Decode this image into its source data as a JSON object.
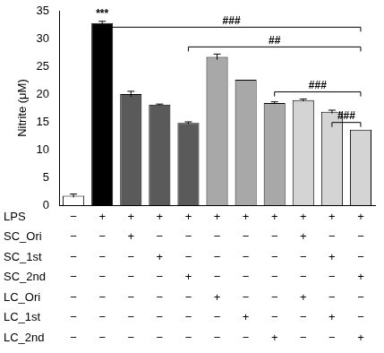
{
  "chart_data": {
    "type": "bar",
    "y_label": "Nitrite (μM)",
    "categories": [
      null,
      null,
      null,
      null,
      null,
      null,
      null,
      null,
      null,
      null,
      null
    ],
    "values": [
      1.7,
      32.8,
      20.0,
      18.1,
      14.8,
      26.7,
      22.6,
      18.4,
      18.9,
      16.8,
      13.6
    ],
    "errors": [
      0.3,
      0.3,
      0.5,
      0.1,
      0.2,
      0.5,
      0.0,
      0.2,
      0.2,
      0.3,
      0.0
    ],
    "colors": [
      "#ffffff",
      "#000000",
      "#5a5a5a",
      "#5a5a5a",
      "#5a5a5a",
      "#a8a8a8",
      "#a8a8a8",
      "#a8a8a8",
      "#d4d4d4",
      "#d4d4d4",
      "#d4d4d4"
    ],
    "ylim": [
      0,
      35
    ],
    "yticks": [
      0,
      5,
      10,
      15,
      20,
      25,
      30,
      35
    ],
    "grid": false,
    "tick_labels": "y",
    "significance": [
      {
        "label": "***",
        "bar": 1
      },
      {
        "label": "###",
        "from": 1,
        "to": 10
      },
      {
        "label": "##",
        "from": 4,
        "to": 10
      },
      {
        "label": "###",
        "from": 7,
        "to": 10
      },
      {
        "label": "###",
        "from": 9,
        "to": 10
      }
    ],
    "treatment_table": {
      "rows": [
        {
          "label": "LPS",
          "marks": [
            "−",
            "+",
            "+",
            "+",
            "+",
            "+",
            "+",
            "+",
            "+",
            "+",
            "+"
          ]
        },
        {
          "label": "SC_Ori",
          "marks": [
            "−",
            "−",
            "+",
            "−",
            "−",
            "−",
            "−",
            "−",
            "+",
            "−",
            "−"
          ]
        },
        {
          "label": "SC_1st",
          "marks": [
            "−",
            "−",
            "−",
            "+",
            "−",
            "−",
            "−",
            "−",
            "−",
            "+",
            "−"
          ]
        },
        {
          "label": "SC_2nd",
          "marks": [
            "−",
            "−",
            "−",
            "−",
            "+",
            "−",
            "−",
            "−",
            "−",
            "−",
            "+"
          ]
        },
        {
          "label": "LC_Ori",
          "marks": [
            "−",
            "−",
            "−",
            "−",
            "−",
            "+",
            "−",
            "−",
            "+",
            "−",
            "−"
          ]
        },
        {
          "label": "LC_1st",
          "marks": [
            "−",
            "−",
            "−",
            "−",
            "−",
            "−",
            "+",
            "−",
            "−",
            "+",
            "−"
          ]
        },
        {
          "label": "LC_2nd",
          "marks": [
            "−",
            "−",
            "−",
            "−",
            "−",
            "−",
            "−",
            "+",
            "−",
            "−",
            "+"
          ]
        }
      ]
    }
  }
}
